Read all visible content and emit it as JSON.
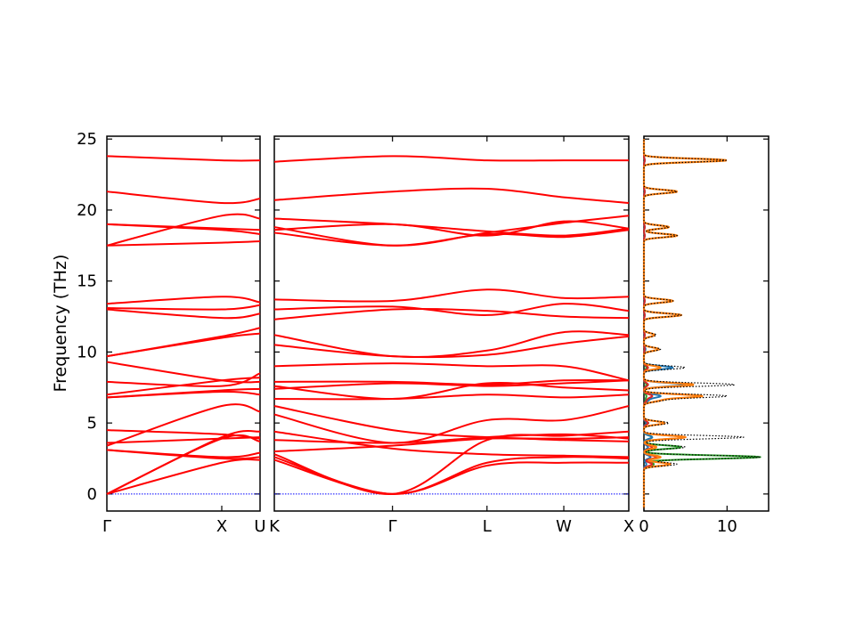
{
  "chart_data": {
    "type": "line",
    "ylabel": "Frequency (THz)",
    "ylim": [
      -1.2,
      25.2
    ],
    "yticks": [
      "0",
      "5",
      "10",
      "15",
      "20",
      "25"
    ],
    "colors": {
      "band": "#ff0000",
      "zero": "#0000ff",
      "dos_total": "#000000",
      "dos_a": "#ff7f0e",
      "dos_b": "#1f77b4",
      "dos_c": "#2ca02c",
      "dos_d": "#d62728"
    },
    "panels": [
      {
        "name": "Gamma-X-U",
        "xticks": [
          "Γ",
          "X",
          "U"
        ],
        "x": [
          0,
          0.75,
          1.0
        ],
        "bands": [
          [
            0.0,
            2.2,
            2.4
          ],
          [
            0.0,
            3.9,
            3.7
          ],
          [
            0.0,
            4.0,
            4.4
          ],
          [
            3.1,
            2.5,
            2.6
          ],
          [
            3.1,
            2.6,
            2.9
          ],
          [
            3.4,
            6.2,
            5.8
          ],
          [
            3.6,
            3.9,
            4.0
          ],
          [
            4.5,
            4.2,
            3.9
          ],
          [
            6.8,
            7.2,
            7.0
          ],
          [
            6.8,
            7.3,
            7.4
          ],
          [
            7.0,
            8.0,
            8.2
          ],
          [
            7.9,
            7.6,
            8.5
          ],
          [
            9.3,
            8.0,
            7.9
          ],
          [
            9.7,
            11.0,
            11.3
          ],
          [
            9.7,
            11.1,
            11.7
          ],
          [
            13.0,
            12.4,
            12.7
          ],
          [
            13.1,
            13.0,
            13.3
          ],
          [
            13.4,
            13.9,
            13.5
          ],
          [
            17.5,
            17.7,
            17.8
          ],
          [
            17.5,
            19.6,
            19.4
          ],
          [
            19.0,
            18.7,
            18.6
          ],
          [
            19.0,
            18.6,
            18.3
          ],
          [
            21.3,
            20.5,
            20.8
          ],
          [
            23.8,
            23.5,
            23.5
          ]
        ]
      },
      {
        "name": "K-Gamma-L-W-X",
        "xticks": [
          "K",
          "Γ",
          "L",
          "W",
          "X"
        ],
        "x": [
          0,
          1.0,
          1.8,
          2.45,
          3.0
        ],
        "bands": [
          [
            2.4,
            0.0,
            2.0,
            2.2,
            2.2
          ],
          [
            2.6,
            0.0,
            2.2,
            2.6,
            2.5
          ],
          [
            2.8,
            0.0,
            3.8,
            4.1,
            4.4
          ],
          [
            4.4,
            3.2,
            2.8,
            2.7,
            2.6
          ],
          [
            3.0,
            3.4,
            3.9,
            3.8,
            3.7
          ],
          [
            3.8,
            3.6,
            4.0,
            4.2,
            3.9
          ],
          [
            5.6,
            3.6,
            5.2,
            5.2,
            6.2
          ],
          [
            6.2,
            4.5,
            4.0,
            3.9,
            4.0
          ],
          [
            6.7,
            6.7,
            7.0,
            6.8,
            7.0
          ],
          [
            7.6,
            6.7,
            7.8,
            7.5,
            7.3
          ],
          [
            7.4,
            7.8,
            7.6,
            7.8,
            8.0
          ],
          [
            7.9,
            7.9,
            7.7,
            8.0,
            8.0
          ],
          [
            9.0,
            9.2,
            9.0,
            9.0,
            8.0
          ],
          [
            10.5,
            9.7,
            9.8,
            10.6,
            11.1
          ],
          [
            11.2,
            9.7,
            10.1,
            11.4,
            11.2
          ],
          [
            12.3,
            13.0,
            12.9,
            12.5,
            12.4
          ],
          [
            13.0,
            13.2,
            12.6,
            13.4,
            12.9
          ],
          [
            13.7,
            13.6,
            14.4,
            13.8,
            13.9
          ],
          [
            18.4,
            17.5,
            18.3,
            18.1,
            18.6
          ],
          [
            18.8,
            17.5,
            18.4,
            19.1,
            19.6
          ],
          [
            18.6,
            19.0,
            18.2,
            19.2,
            18.7
          ],
          [
            19.4,
            19.0,
            18.5,
            18.2,
            18.7
          ],
          [
            20.7,
            21.3,
            21.5,
            20.9,
            20.5
          ],
          [
            23.4,
            23.8,
            23.5,
            23.5,
            23.5
          ]
        ]
      }
    ],
    "dos": {
      "xticks": [
        "0",
        "10"
      ],
      "xlim": [
        0,
        15
      ],
      "peaks": [
        {
          "f": 2.1,
          "total": 4.0,
          "a": 3.2,
          "b": 0.3,
          "c": 1.2,
          "d": 1.0
        },
        {
          "f": 2.6,
          "total": 14.0,
          "a": 2.0,
          "b": 0.8,
          "c": 14.0,
          "d": 1.5
        },
        {
          "f": 3.3,
          "total": 5.0,
          "a": 1.5,
          "b": 0.5,
          "c": 4.5,
          "d": 1.0
        },
        {
          "f": 4.0,
          "total": 12.0,
          "a": 5.0,
          "b": 1.0,
          "c": 1.0,
          "d": 5.0
        },
        {
          "f": 5.0,
          "total": 3.0,
          "a": 2.5,
          "b": 0.3,
          "c": 0.3,
          "d": 0.5
        },
        {
          "f": 6.6,
          "total": 2.0,
          "a": 1.8,
          "b": 0.5,
          "c": 0.2,
          "d": 0.3
        },
        {
          "f": 6.9,
          "total": 10.0,
          "a": 7.0,
          "b": 2.0,
          "c": 0.3,
          "d": 1.0
        },
        {
          "f": 7.7,
          "total": 11.0,
          "a": 6.0,
          "b": 5.0,
          "c": 0.3,
          "d": 0.5
        },
        {
          "f": 8.9,
          "total": 5.0,
          "a": 2.0,
          "b": 3.5,
          "c": 0.3,
          "d": 0.5
        },
        {
          "f": 10.2,
          "total": 2.0,
          "a": 1.8,
          "b": 0.2,
          "c": 0.1,
          "d": 0.1
        },
        {
          "f": 11.2,
          "total": 1.5,
          "a": 1.3,
          "b": 0.1,
          "c": 0.1,
          "d": 0.1
        },
        {
          "f": 12.6,
          "total": 4.5,
          "a": 4.5,
          "b": 0.1,
          "c": 0.1,
          "d": 0.1
        },
        {
          "f": 13.6,
          "total": 3.5,
          "a": 3.5,
          "b": 0.1,
          "c": 0.1,
          "d": 0.1
        },
        {
          "f": 18.2,
          "total": 4.0,
          "a": 4.0,
          "b": 0.1,
          "c": 0.1,
          "d": 0.1
        },
        {
          "f": 18.8,
          "total": 3.0,
          "a": 3.0,
          "b": 0.1,
          "c": 0.1,
          "d": 0.1
        },
        {
          "f": 21.3,
          "total": 4.0,
          "a": 4.0,
          "b": 0.1,
          "c": 0.1,
          "d": 0.1
        },
        {
          "f": 23.5,
          "total": 10.0,
          "a": 10.0,
          "b": 0.1,
          "c": 0.1,
          "d": 0.1
        }
      ]
    }
  }
}
